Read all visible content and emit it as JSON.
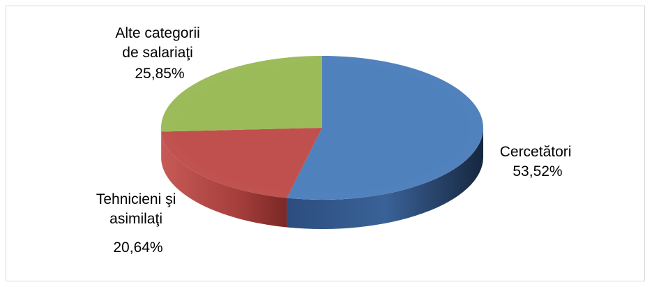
{
  "chart_data": {
    "type": "pie",
    "title": "",
    "slices": [
      {
        "lines": [
          "Cercetători",
          "53,52%"
        ],
        "value": 53.52,
        "color": "#4F81BD"
      },
      {
        "lines": [
          "Tehnicieni şi",
          "asimilaţi",
          "20,64%"
        ],
        "value": 20.64,
        "color": "#C0504D"
      },
      {
        "lines": [
          "Alte categorii",
          "de salariaţi",
          "25,85%"
        ],
        "value": 25.85,
        "color": "#9BBB59"
      }
    ]
  }
}
